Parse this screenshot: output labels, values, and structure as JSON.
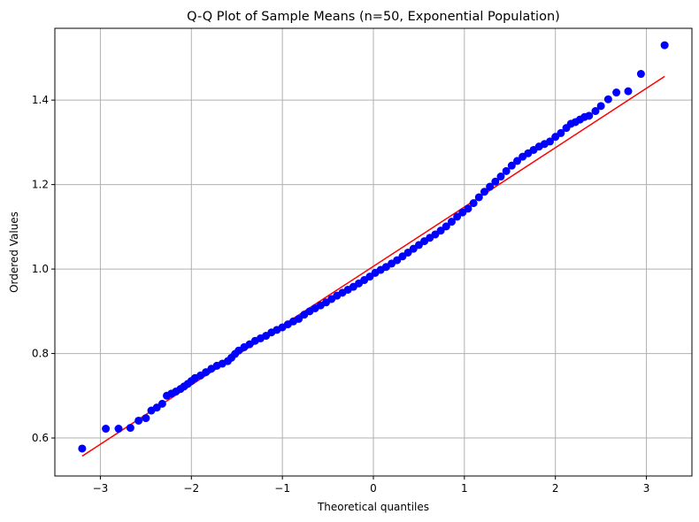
{
  "chart_data": {
    "type": "scatter",
    "title": "Q-Q Plot of Sample Means (n=50, Exponential Population)",
    "xlabel": "Theoretical quantiles",
    "ylabel": "Ordered Values",
    "xlim": [
      -3.5,
      3.5
    ],
    "ylim": [
      0.51,
      1.57
    ],
    "xticks": [
      -3,
      -2,
      -1,
      0,
      1,
      2,
      3
    ],
    "xtick_labels": [
      "−3",
      "−2",
      "−1",
      "0",
      "1",
      "2",
      "3"
    ],
    "yticks": [
      0.6,
      0.8,
      1.0,
      1.2,
      1.4
    ],
    "ytick_labels": [
      "0.6",
      "0.8",
      "1.0",
      "1.2",
      "1.4"
    ],
    "grid": true,
    "marker_color": "#0000ff",
    "line_color": "#ff0000",
    "fit_line": {
      "x": [
        -3.2,
        3.2
      ],
      "y": [
        0.557,
        1.456
      ]
    },
    "series": [
      {
        "points": [
          [
            -3.2,
            0.575
          ],
          [
            -2.94,
            0.622
          ],
          [
            -2.8,
            0.622
          ],
          [
            -2.67,
            0.624
          ],
          [
            -2.58,
            0.641
          ],
          [
            -2.5,
            0.647
          ],
          [
            -2.44,
            0.665
          ],
          [
            -2.38,
            0.672
          ],
          [
            -2.32,
            0.681
          ],
          [
            -2.27,
            0.7
          ],
          [
            -2.22,
            0.705
          ],
          [
            -2.17,
            0.71
          ],
          [
            -2.12,
            0.716
          ],
          [
            -2.08,
            0.722
          ],
          [
            -2.04,
            0.728
          ],
          [
            -2.0,
            0.735
          ],
          [
            -1.96,
            0.742
          ],
          [
            -1.9,
            0.748
          ],
          [
            -1.84,
            0.756
          ],
          [
            -1.78,
            0.764
          ],
          [
            -1.72,
            0.771
          ],
          [
            -1.66,
            0.776
          ],
          [
            -1.6,
            0.782
          ],
          [
            -1.56,
            0.79
          ],
          [
            -1.52,
            0.799
          ],
          [
            -1.48,
            0.807
          ],
          [
            -1.42,
            0.815
          ],
          [
            -1.36,
            0.822
          ],
          [
            -1.3,
            0.83
          ],
          [
            -1.24,
            0.836
          ],
          [
            -1.18,
            0.842
          ],
          [
            -1.12,
            0.85
          ],
          [
            -1.06,
            0.856
          ],
          [
            -1.0,
            0.862
          ],
          [
            -0.94,
            0.869
          ],
          [
            -0.88,
            0.876
          ],
          [
            -0.82,
            0.882
          ],
          [
            -0.76,
            0.892
          ],
          [
            -0.7,
            0.9
          ],
          [
            -0.64,
            0.907
          ],
          [
            -0.58,
            0.914
          ],
          [
            -0.52,
            0.921
          ],
          [
            -0.46,
            0.929
          ],
          [
            -0.4,
            0.937
          ],
          [
            -0.34,
            0.944
          ],
          [
            -0.28,
            0.951
          ],
          [
            -0.22,
            0.958
          ],
          [
            -0.16,
            0.966
          ],
          [
            -0.1,
            0.974
          ],
          [
            -0.04,
            0.982
          ],
          [
            0.02,
            0.991
          ],
          [
            0.08,
            0.998
          ],
          [
            0.14,
            1.005
          ],
          [
            0.2,
            1.013
          ],
          [
            0.26,
            1.021
          ],
          [
            0.32,
            1.03
          ],
          [
            0.38,
            1.039
          ],
          [
            0.44,
            1.048
          ],
          [
            0.5,
            1.057
          ],
          [
            0.56,
            1.066
          ],
          [
            0.62,
            1.074
          ],
          [
            0.68,
            1.082
          ],
          [
            0.74,
            1.091
          ],
          [
            0.8,
            1.101
          ],
          [
            0.86,
            1.112
          ],
          [
            0.92,
            1.124
          ],
          [
            0.98,
            1.134
          ],
          [
            1.04,
            1.143
          ],
          [
            1.1,
            1.156
          ],
          [
            1.16,
            1.17
          ],
          [
            1.22,
            1.183
          ],
          [
            1.28,
            1.195
          ],
          [
            1.34,
            1.207
          ],
          [
            1.4,
            1.219
          ],
          [
            1.46,
            1.232
          ],
          [
            1.52,
            1.245
          ],
          [
            1.58,
            1.256
          ],
          [
            1.64,
            1.266
          ],
          [
            1.7,
            1.274
          ],
          [
            1.76,
            1.282
          ],
          [
            1.82,
            1.29
          ],
          [
            1.88,
            1.296
          ],
          [
            1.94,
            1.302
          ],
          [
            2.0,
            1.313
          ],
          [
            2.06,
            1.322
          ],
          [
            2.12,
            1.334
          ],
          [
            2.17,
            1.344
          ],
          [
            2.22,
            1.348
          ],
          [
            2.27,
            1.354
          ],
          [
            2.32,
            1.36
          ],
          [
            2.37,
            1.363
          ],
          [
            2.44,
            1.374
          ],
          [
            2.5,
            1.386
          ],
          [
            2.58,
            1.402
          ],
          [
            2.67,
            1.418
          ],
          [
            2.8,
            1.421
          ],
          [
            2.94,
            1.462
          ],
          [
            3.2,
            1.53
          ]
        ]
      }
    ]
  }
}
